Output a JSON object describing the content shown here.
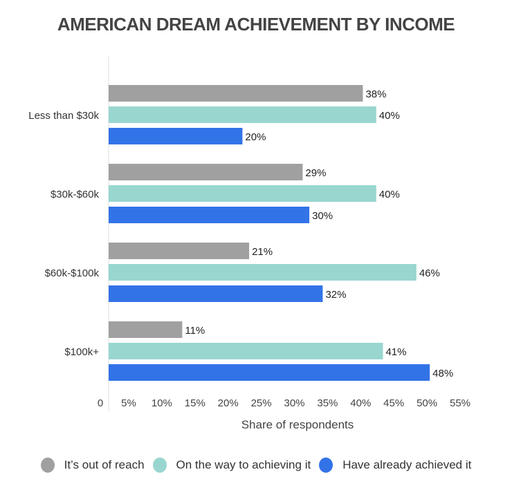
{
  "chart_data": {
    "type": "bar",
    "orientation": "horizontal",
    "title": "AMERICAN DREAM ACHIEVEMENT BY INCOME",
    "xlabel": "Share of respondents",
    "ylabel": "",
    "categories": [
      "Less than $30k",
      "$30k-$60k",
      "$60k-$100k",
      "$100k+"
    ],
    "series": [
      {
        "name": "It’s out of reach",
        "color": "#a0a0a0",
        "values": [
          38,
          29,
          21,
          11
        ]
      },
      {
        "name": "On the way to achieving it",
        "color": "#99d6d0",
        "values": [
          40,
          40,
          46,
          41
        ]
      },
      {
        "name": "Have already achieved it",
        "color": "#3373e8",
        "values": [
          20,
          30,
          32,
          48
        ]
      }
    ],
    "xticks": [
      "0",
      "5%",
      "10%",
      "15%",
      "20%",
      "25%",
      "30%",
      "35%",
      "40%",
      "45%",
      "50%",
      "55%"
    ],
    "xlim": [
      0,
      55
    ],
    "grid": false,
    "legend": "bottom"
  }
}
